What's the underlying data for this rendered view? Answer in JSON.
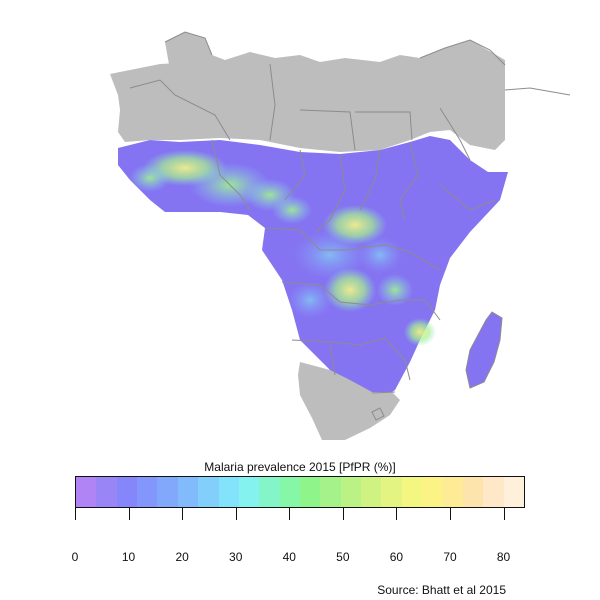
{
  "map": {
    "region": "Africa",
    "land_color": "#bdbdbd",
    "border_color": "#8c8c8c"
  },
  "legend": {
    "title": "Malaria prevalence 2015 [PfPR (%)]",
    "range": [
      0,
      84
    ],
    "ticks": [
      "0",
      "10",
      "20",
      "30",
      "40",
      "50",
      "60",
      "70",
      "80"
    ],
    "colors": [
      "#b184f5",
      "#9a85f7",
      "#8486f9",
      "#8296fb",
      "#82a8fb",
      "#82bbfb",
      "#82cffb",
      "#82e3fb",
      "#84f3ef",
      "#84f5c8",
      "#86f7a6",
      "#8ff48a",
      "#a5f28a",
      "#bbf286",
      "#d0f282",
      "#e3f482",
      "#f3f782",
      "#fbf386",
      "#fdeb95",
      "#fde3ac",
      "#fee8c7",
      "#fff0dc"
    ]
  },
  "source": "Source: Bhatt et al 2015"
}
